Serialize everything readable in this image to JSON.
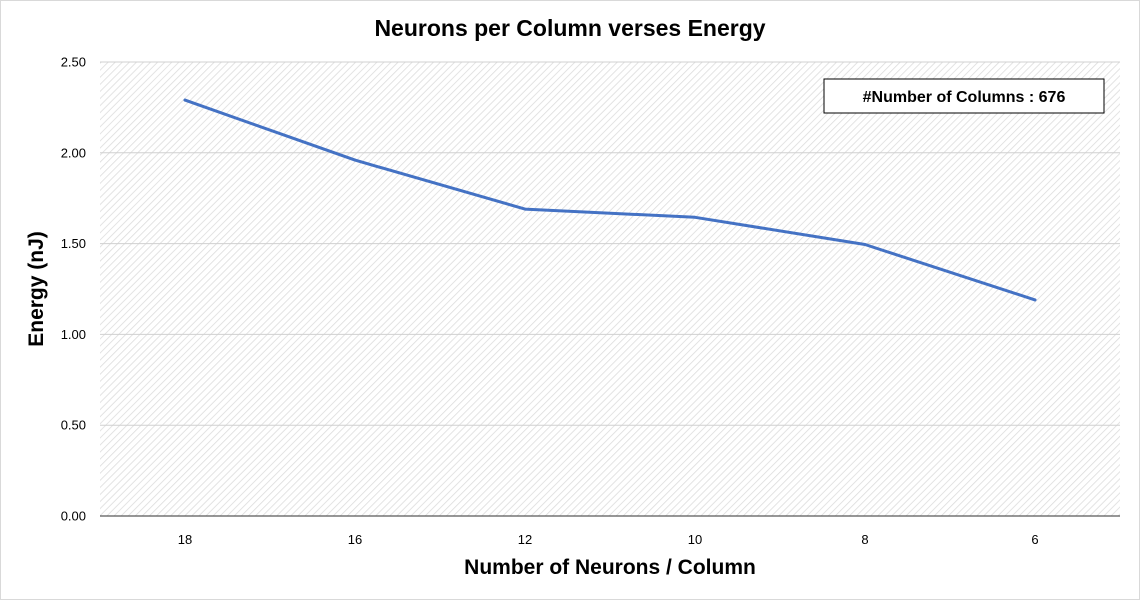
{
  "chart_data": {
    "type": "line",
    "title": "Neurons per Column verses Energy",
    "xlabel": "Number of Neurons / Column",
    "ylabel": "Energy (nJ)",
    "categories": [
      "18",
      "16",
      "12",
      "10",
      "8",
      "6"
    ],
    "series": [
      {
        "values": [
          2.29,
          1.96,
          1.69,
          1.645,
          1.495,
          1.19
        ],
        "color": "#4472c4"
      }
    ],
    "ylim": [
      0,
      2.5
    ],
    "yticks": [
      "0.00",
      "0.50",
      "1.00",
      "1.50",
      "2.00",
      "2.50"
    ],
    "grid": true,
    "annotation": "#Number of Columns : 676"
  }
}
